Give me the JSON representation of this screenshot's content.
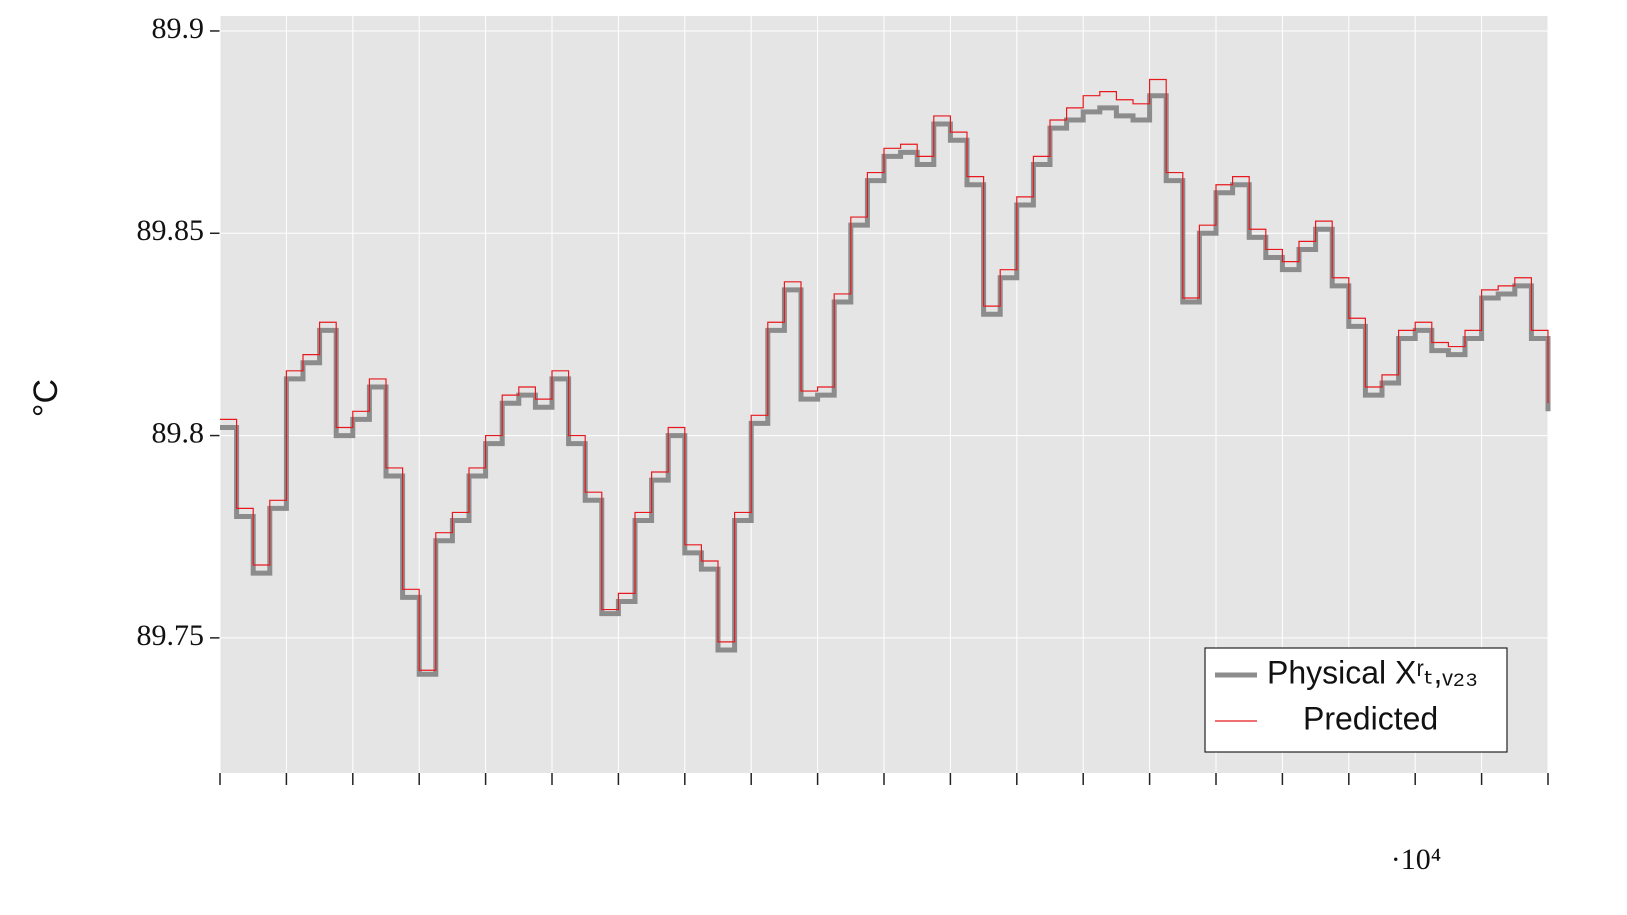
{
  "chart_data": {
    "type": "line",
    "step": true,
    "y_label": "°C",
    "x_multiplier": "·10⁴",
    "x": [
      0,
      0.25,
      0.5,
      0.75,
      1,
      1.25,
      1.5,
      1.75,
      2,
      2.25,
      2.5,
      2.75,
      3,
      3.25,
      3.5,
      3.75,
      4,
      4.25,
      4.5,
      4.75,
      5,
      5.25,
      5.5,
      5.75,
      6,
      6.25,
      6.5,
      6.75,
      7,
      7.25,
      7.5,
      7.75,
      8,
      8.25,
      8.5,
      8.75,
      9,
      9.25,
      9.5,
      9.75,
      10,
      10.25,
      10.5,
      10.75,
      11,
      11.25,
      11.5,
      11.75,
      12,
      12.25,
      12.5,
      12.75,
      13,
      13.25,
      13.5,
      13.75,
      14,
      14.25,
      14.5,
      14.75,
      15,
      15.25,
      15.5,
      15.75,
      16,
      16.25,
      16.5,
      16.75,
      17,
      17.25,
      17.5,
      17.75,
      18,
      18.25,
      18.5,
      18.75,
      19,
      19.25,
      19.5,
      19.75,
      20
    ],
    "series": [
      {
        "name": "Physical Xʳₜ,ᵥ₂₃",
        "color": "#8c8c8c",
        "width": 5,
        "values": [
          89.802,
          89.78,
          89.766,
          89.782,
          89.814,
          89.818,
          89.826,
          89.8,
          89.804,
          89.812,
          89.79,
          89.76,
          89.741,
          89.774,
          89.779,
          89.79,
          89.798,
          89.808,
          89.81,
          89.807,
          89.814,
          89.798,
          89.784,
          89.756,
          89.759,
          89.779,
          89.789,
          89.8,
          89.771,
          89.767,
          89.747,
          89.779,
          89.803,
          89.826,
          89.836,
          89.809,
          89.81,
          89.833,
          89.852,
          89.863,
          89.869,
          89.87,
          89.867,
          89.877,
          89.873,
          89.862,
          89.83,
          89.839,
          89.857,
          89.867,
          89.876,
          89.878,
          89.88,
          89.881,
          89.879,
          89.878,
          89.884,
          89.863,
          89.833,
          89.85,
          89.86,
          89.862,
          89.849,
          89.844,
          89.841,
          89.846,
          89.851,
          89.837,
          89.827,
          89.81,
          89.813,
          89.824,
          89.826,
          89.821,
          89.82,
          89.824,
          89.834,
          89.835,
          89.837,
          89.824,
          89.806
        ]
      },
      {
        "name": "Predicted",
        "color": "#e8191e",
        "width": 1.2,
        "values": [
          89.804,
          89.782,
          89.768,
          89.784,
          89.816,
          89.82,
          89.828,
          89.802,
          89.806,
          89.814,
          89.792,
          89.762,
          89.742,
          89.776,
          89.781,
          89.792,
          89.8,
          89.81,
          89.812,
          89.809,
          89.816,
          89.8,
          89.786,
          89.757,
          89.761,
          89.781,
          89.791,
          89.802,
          89.773,
          89.769,
          89.749,
          89.781,
          89.805,
          89.828,
          89.838,
          89.811,
          89.812,
          89.835,
          89.854,
          89.865,
          89.871,
          89.872,
          89.869,
          89.879,
          89.875,
          89.864,
          89.832,
          89.841,
          89.859,
          89.869,
          89.878,
          89.881,
          89.884,
          89.885,
          89.883,
          89.882,
          89.888,
          89.865,
          89.834,
          89.852,
          89.862,
          89.864,
          89.851,
          89.846,
          89.843,
          89.848,
          89.853,
          89.839,
          89.829,
          89.812,
          89.815,
          89.826,
          89.828,
          89.823,
          89.822,
          89.826,
          89.836,
          89.837,
          89.839,
          89.826,
          89.808
        ]
      }
    ],
    "xlim": [
      0,
      20
    ],
    "xticks": [
      0,
      1,
      2,
      3,
      4,
      5,
      6,
      7,
      8,
      9,
      10,
      11,
      12,
      13,
      14,
      15,
      16,
      17,
      18,
      19,
      20
    ],
    "ylim": [
      89.7166,
      89.9037
    ],
    "yticks": [
      89.75,
      89.8,
      89.85,
      89.9
    ],
    "grid": true,
    "legend": "lower right"
  }
}
